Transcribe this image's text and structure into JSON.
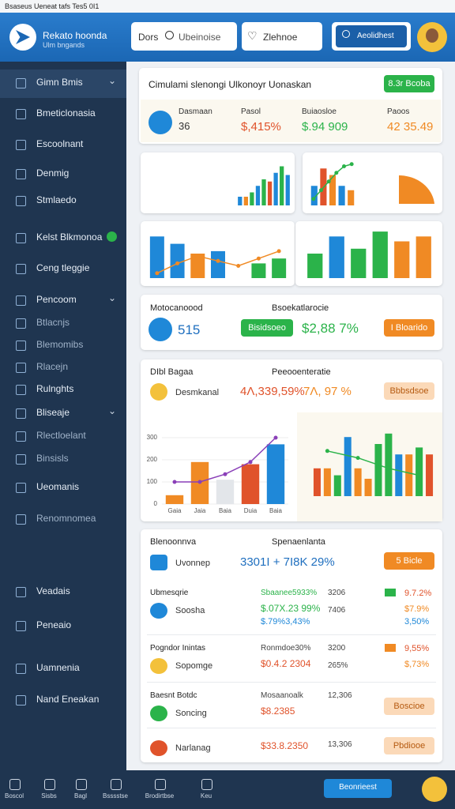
{
  "status_bar": {
    "title": "Bsaseus Ueneat tafs Tes5 0I1"
  },
  "header": {
    "brand": "Rekato hoonda",
    "brand_sub": "Ulm bngands",
    "search_label": "Dors",
    "search_placeholder": "Ubeinoise",
    "favorites": "Zlehnoe",
    "action": "Aeolidhest"
  },
  "sidebar": {
    "items": [
      "Gimn Bmis",
      "Bmeticlonasia",
      "Escoolnant",
      "Denmig",
      "Stmlaedo",
      "Kelst Blkmonoa",
      "Ceng tleggie",
      "Pencoom",
      "Btlacnjs",
      "Blemomibs",
      "Rlacejn",
      "Rulnghts",
      "Bliseaje",
      "Rlectloelant",
      "Binsisls",
      "Ueomanis",
      "Renomnomea",
      "Veadais",
      "Peneaio",
      "Uamnenia",
      "Nand Eneakan"
    ]
  },
  "summary": {
    "title": "Cimulami slenongi Ulkonoyr Uonaskan",
    "button": "8.3r Bcoba",
    "stats": [
      {
        "label": "Dasmaan",
        "value": "36"
      },
      {
        "label": "Pasol",
        "value": "$,415%"
      },
      {
        "label": "Buiaosloe",
        "value": "$.94 909"
      },
      {
        "label": "Paoos",
        "value": "42 35.49"
      }
    ]
  },
  "charts": [
    {
      "type": "bar",
      "ylim": [
        0,
        100
      ],
      "values": [
        20,
        20,
        30,
        45,
        60,
        55,
        75,
        90,
        70
      ],
      "colors": [
        "#1f88d8",
        "#f08a24",
        "#2bb34a",
        "#1f88d8",
        "#2bb34a",
        "#e0532b",
        "#1f88d8",
        "#2bb34a",
        "#1f88d8"
      ]
    },
    {
      "type": "bar",
      "ylim": [
        0,
        100
      ],
      "values": [
        45,
        85,
        70,
        45,
        35
      ],
      "colors": [
        "#1f88d8",
        "#e0532b",
        "#f08a24",
        "#1f88d8",
        "#f08a24"
      ],
      "line": {
        "color": "#2bb34a",
        "values": [
          15,
          35,
          55,
          75,
          90,
          95
        ]
      }
    },
    {
      "type": "bar",
      "ylim": [
        0,
        100
      ],
      "values": [
        85,
        70,
        50,
        55,
        0,
        30,
        40
      ],
      "colors": [
        "#1f88d8",
        "#1f88d8",
        "#f08a24",
        "#1f88d8",
        "#f08a24",
        "#2bb34a",
        "#2bb34a"
      ],
      "line": {
        "color": "#f08a24",
        "values": [
          10,
          30,
          45,
          35,
          25,
          40,
          55
        ]
      }
    },
    {
      "type": "bar",
      "ylim": [
        0,
        100
      ],
      "values": [
        50,
        85,
        60,
        95,
        75,
        85
      ],
      "colors": [
        "#2bb34a",
        "#1f88d8",
        "#2bb34a",
        "#2bb34a",
        "#f08a24",
        "#f08a24"
      ]
    },
    {
      "type": "bar",
      "ylim": [
        0,
        350
      ],
      "yticks": [
        0,
        100,
        200,
        300
      ],
      "categories": [
        "Gaia",
        "Jaia",
        "Baia",
        "Duia",
        "Baia"
      ],
      "values": [
        40,
        190,
        110,
        180,
        270
      ],
      "colors": [
        "#f08a24",
        "#f08a24",
        "#e3e6ea",
        "#e0532b",
        "#1f88d8"
      ],
      "line": {
        "color": "#8a3fb8",
        "values": [
          100,
          100,
          135,
          190,
          300
        ]
      }
    },
    {
      "type": "bar",
      "ylim": [
        0,
        100
      ],
      "values": [
        40,
        40,
        30,
        85,
        40,
        25,
        75,
        90,
        60,
        60,
        70,
        60
      ],
      "colors": [
        "#e0532b",
        "#f08a24",
        "#2bb34a",
        "#1f88d8",
        "#f08a24",
        "#f08a24",
        "#2bb34a",
        "#2bb34a",
        "#1f88d8",
        "#f08a24",
        "#2bb34a",
        "#e0532b"
      ],
      "line": {
        "color": "#2bb34a",
        "values": [
          65,
          55,
          40,
          30
        ]
      }
    }
  ],
  "card_a": {
    "label": "Motocanoood",
    "label2": "Bsoekatlarocie",
    "value": "515",
    "button": "Bisidsoeo",
    "amount": "$2,88 7%",
    "button2": "I Bloarido"
  },
  "card_b": {
    "label": "DIbl Bagaa",
    "label2": "Peeooenteratie",
    "name": "Desmkanal",
    "amount": "4Λ,339,59%",
    "amount2": "7Λ, 97 %",
    "button": "Bbbsdsoe"
  },
  "card_c": {
    "label": "Blenoonnva",
    "label2": "Spenaenlanta",
    "name": "Uvonnep",
    "amount": "3301I + 7I8K 29%",
    "button": "5 Bicle",
    "rows": [
      {
        "head": "Ubmesqrie",
        "name": "Soosha",
        "a": "Sbaanee5933%",
        "b": "$.07X.23 99%",
        "c": "$.79%3,43%",
        "d": "3206",
        "e": "7406",
        "f": "9.7.2%",
        "g": "$7.9%",
        "h": "3,50%"
      },
      {
        "head": "Pogndor Inintas",
        "name": "Sopomge",
        "a": "Ronmdoe30%",
        "b": "$0.4.2 2304",
        "d": "3200",
        "e": "265%",
        "f": "9,55%",
        "g": "$,73%"
      },
      {
        "head": "Baesnt Botdc",
        "name": "Soncing",
        "a": "Mosaanoalk",
        "b": "$8.2385",
        "d": "12,306",
        "button": "Boscioe"
      },
      {
        "name": "Narlanag",
        "b": "$33.8.2350",
        "d": "13,306",
        "button": "Pbdiooe"
      }
    ]
  },
  "bottom_nav": {
    "items": [
      "Boscol",
      "Sisbs",
      "Bagl",
      "Bsssstse",
      "Brodirtbse",
      "Keu"
    ],
    "button": "Beonrieest"
  }
}
